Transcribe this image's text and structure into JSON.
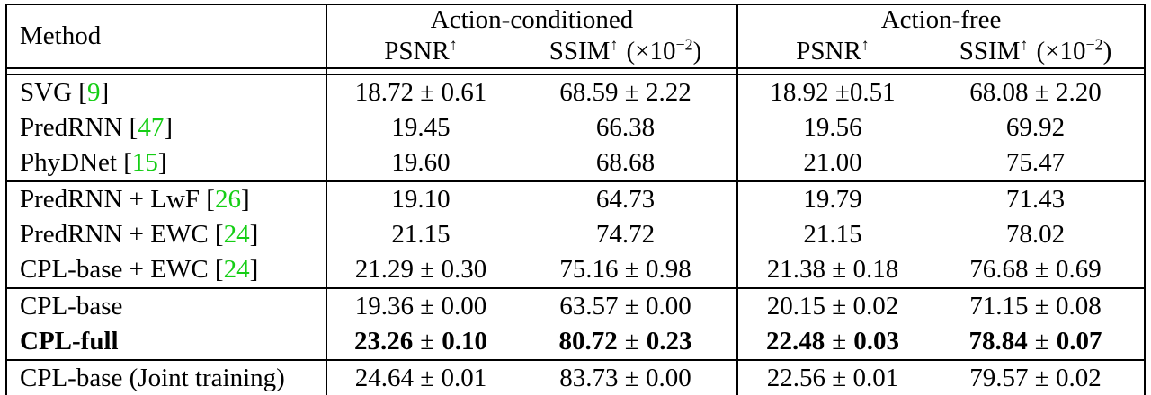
{
  "accent": {
    "cite_color": "#15CE15",
    "text_color": "#000000",
    "border_color": "#000000"
  },
  "pm_symbol": "±",
  "cite_brackets": {
    "open": "[",
    "close": "]"
  },
  "header": {
    "method": "Method",
    "groups": [
      {
        "label": "Action-conditioned"
      },
      {
        "label": "Action-free"
      }
    ],
    "psnr": "PSNR",
    "ssim": "SSIM",
    "arrow": "↑",
    "scale_prefix": "(×10",
    "scale_exp": "−2",
    "scale_suffix": ")"
  },
  "body": {
    "sections": [
      {
        "rows": [
          {
            "method": "SVG",
            "cite": "9",
            "bold": false,
            "values": [
              "18.72 ± 0.61",
              "68.59 ± 2.22",
              "18.92 ±0.51",
              "68.08 ± 2.20"
            ]
          },
          {
            "method": "PredRNN",
            "cite": "47",
            "bold": false,
            "values": [
              "19.45",
              "66.38",
              "19.56",
              "69.92"
            ]
          },
          {
            "method": "PhyDNet",
            "cite": "15",
            "bold": false,
            "values": [
              "19.60",
              "68.68",
              "21.00",
              "75.47"
            ]
          }
        ]
      },
      {
        "rows": [
          {
            "method": "PredRNN + LwF",
            "cite": "26",
            "bold": false,
            "values": [
              "19.10",
              "64.73",
              "19.79",
              "71.43"
            ]
          },
          {
            "method": "PredRNN + EWC",
            "cite": "24",
            "bold": false,
            "values": [
              "21.15",
              "74.72",
              "21.15",
              "78.02"
            ]
          },
          {
            "method": "CPL-base + EWC",
            "cite": "24",
            "bold": false,
            "values": [
              "21.29 ± 0.30",
              "75.16 ± 0.98",
              "21.38 ± 0.18",
              "76.68 ± 0.69"
            ]
          }
        ]
      },
      {
        "rows": [
          {
            "method": "CPL-base",
            "cite": null,
            "bold": false,
            "values": [
              "19.36 ± 0.00",
              "63.57 ± 0.00",
              "20.15 ± 0.02",
              "71.15 ± 0.08"
            ]
          },
          {
            "method": "CPL-full",
            "cite": null,
            "bold": true,
            "values": [
              "23.26 ± 0.10",
              "80.72 ± 0.23",
              "22.48 ± 0.03",
              "78.84 ± 0.07"
            ]
          }
        ]
      },
      {
        "rows": [
          {
            "method": "CPL-base (Joint training)",
            "cite": null,
            "bold": false,
            "values": [
              "24.64 ± 0.01",
              "83.73 ± 0.00",
              "22.56 ± 0.01",
              "79.57 ± 0.02"
            ]
          }
        ]
      }
    ]
  }
}
